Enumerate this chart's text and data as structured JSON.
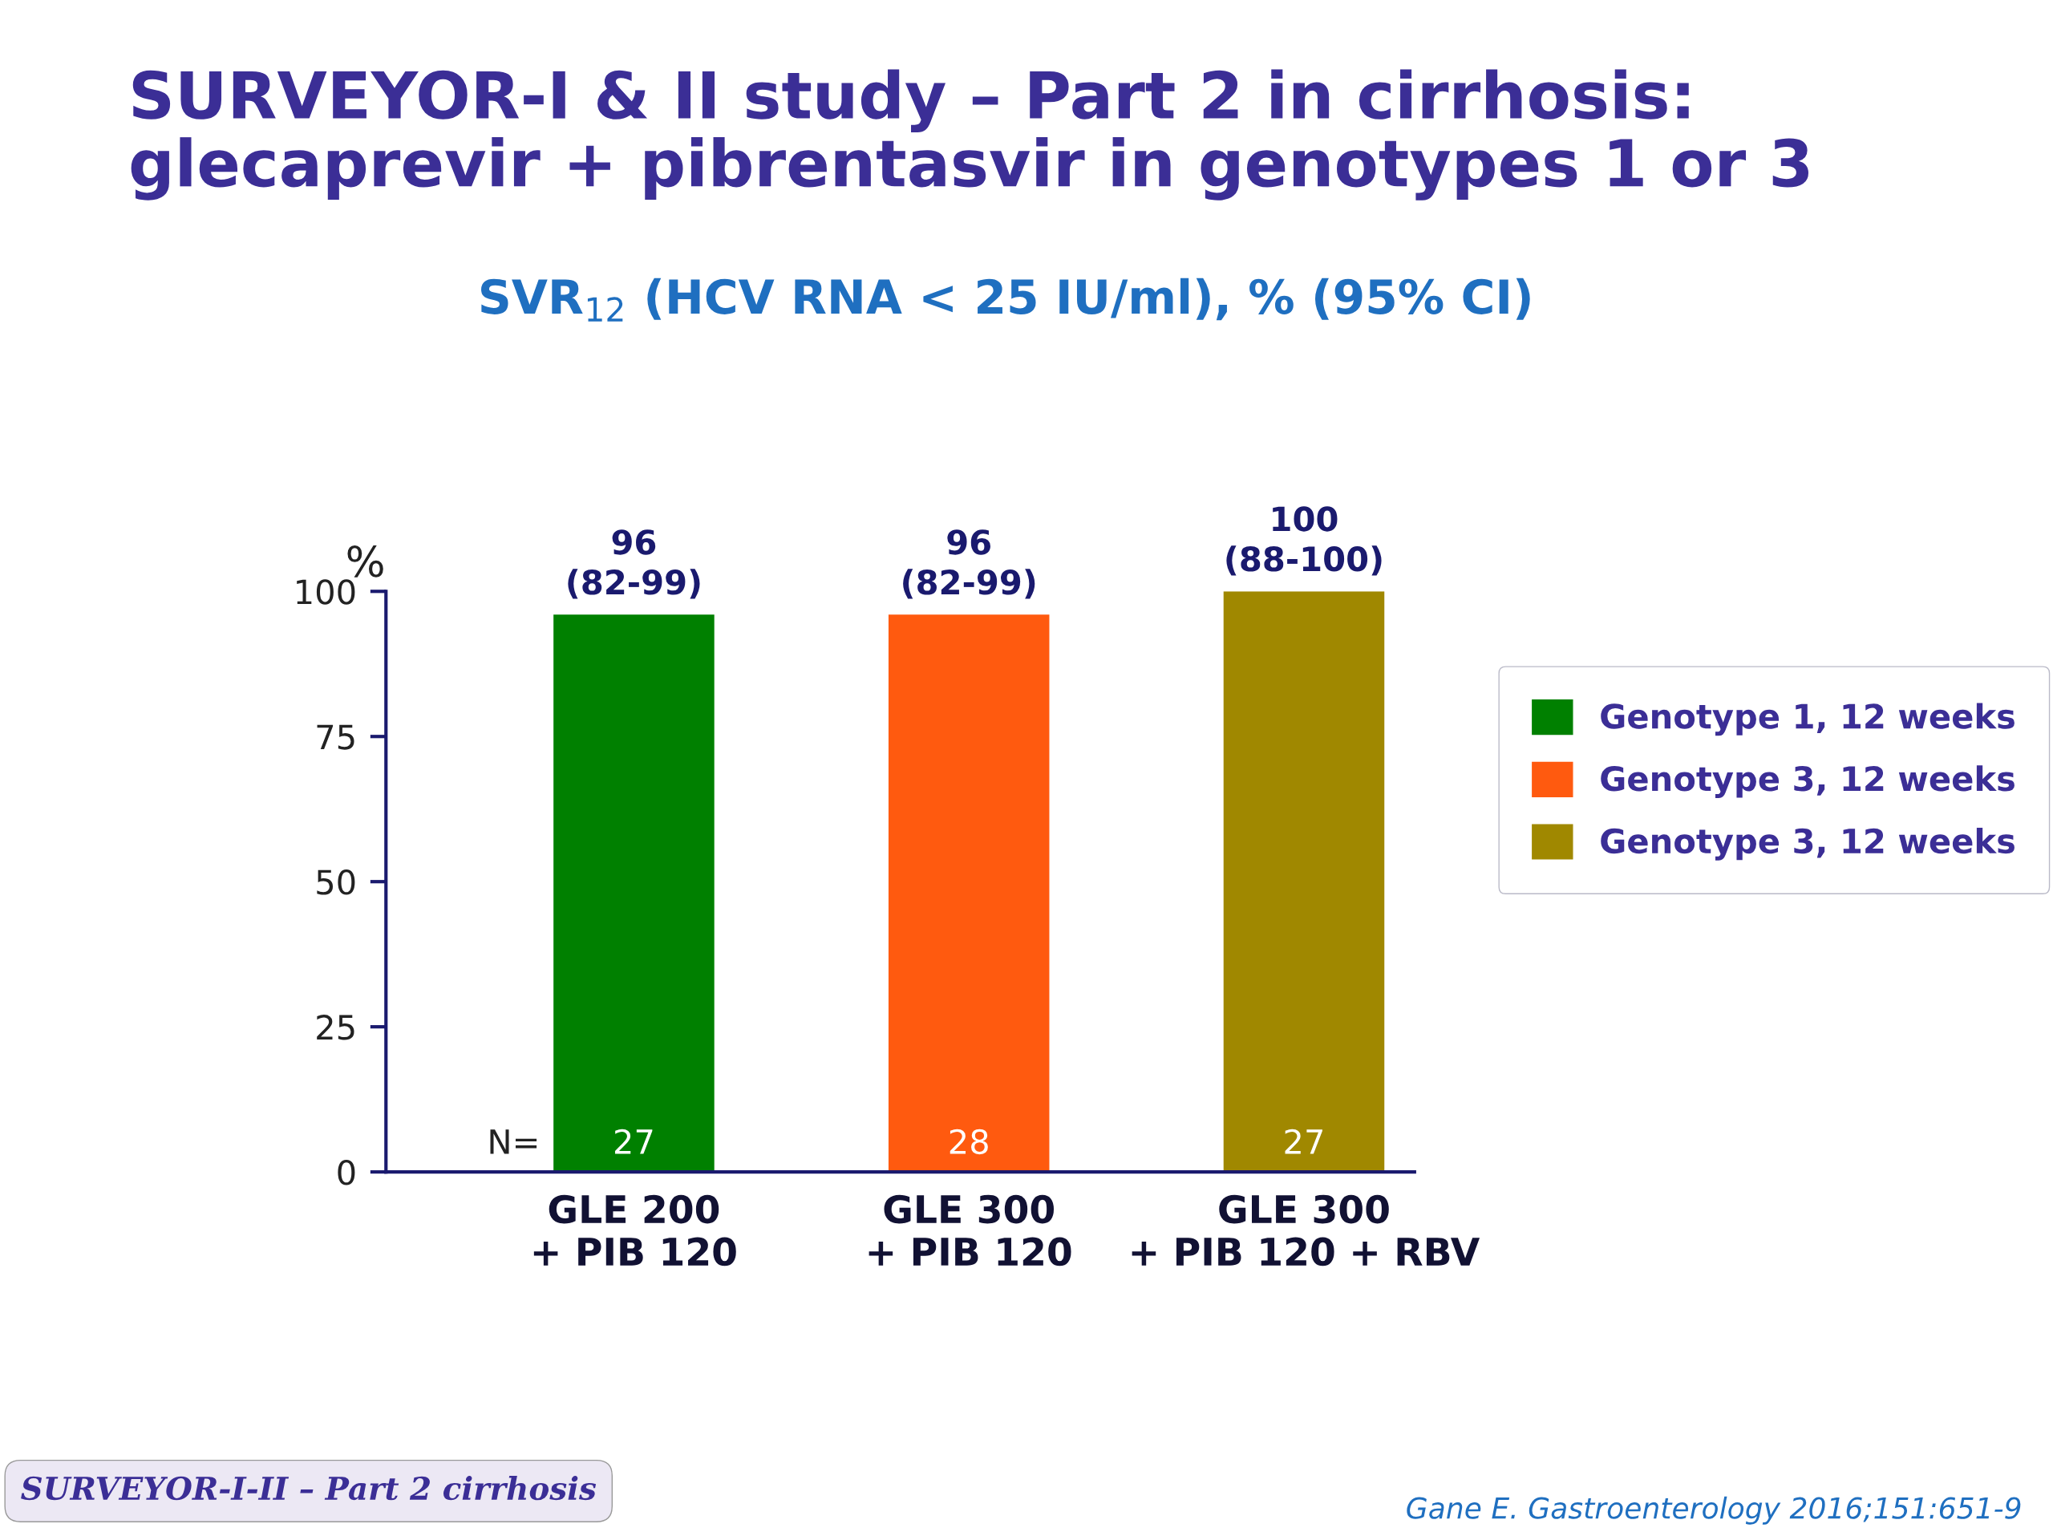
{
  "chart_data": {
    "type": "bar",
    "title": "SURVEYOR-I & II study – Part 2 in cirrhosis:\nglecaprevir + pibrentasvir in genotypes 1 or 3",
    "subtitle": "SVR$_{12}$ (HCV RNA < 25 IU/ml), % (95% CI)",
    "ylabel": "%",
    "categories": [
      "GLE 200\n+ PIB 120",
      "GLE 300\n+ PIB 120",
      "GLE 300\n+ PIB 120 + RBV"
    ],
    "series": [
      {
        "name": "Genotype 1, 12 weeks",
        "color": "#008000",
        "values": [
          96,
          null,
          null
        ],
        "value_labels": [
          "96\n(82-99)",
          null,
          null
        ]
      },
      {
        "name": "Genotype 3, 12 weeks",
        "color": "#ff5a0f",
        "values": [
          null,
          96,
          null
        ],
        "value_labels": [
          null,
          "96\n(82-99)",
          null
        ]
      },
      {
        "name": "Genotype 3, 12 weeks",
        "color": "#a08800",
        "values": [
          null,
          null,
          100
        ],
        "value_labels": [
          null,
          null,
          "100\n(88-100)"
        ]
      }
    ],
    "ylim": [
      0,
      100
    ],
    "yticks": [
      0,
      25,
      50,
      75,
      100
    ],
    "grid": false,
    "legend": "right",
    "annotations": [
      "N=",
      {
        "text": "27",
        "x": "GLE 200\n+ PIB 120",
        "y": 0
      },
      {
        "text": "28",
        "x": "GLE 300\n+ PIB 120",
        "y": 0
      },
      {
        "text": "27",
        "x": "GLE 300\n+ PIB 120 + RBV",
        "y": 0
      },
      "SURVEYOR-I-II – Part 2 cirrhosis",
      "Gane E. Gastroenterology 2016;151:651-9"
    ]
  }
}
